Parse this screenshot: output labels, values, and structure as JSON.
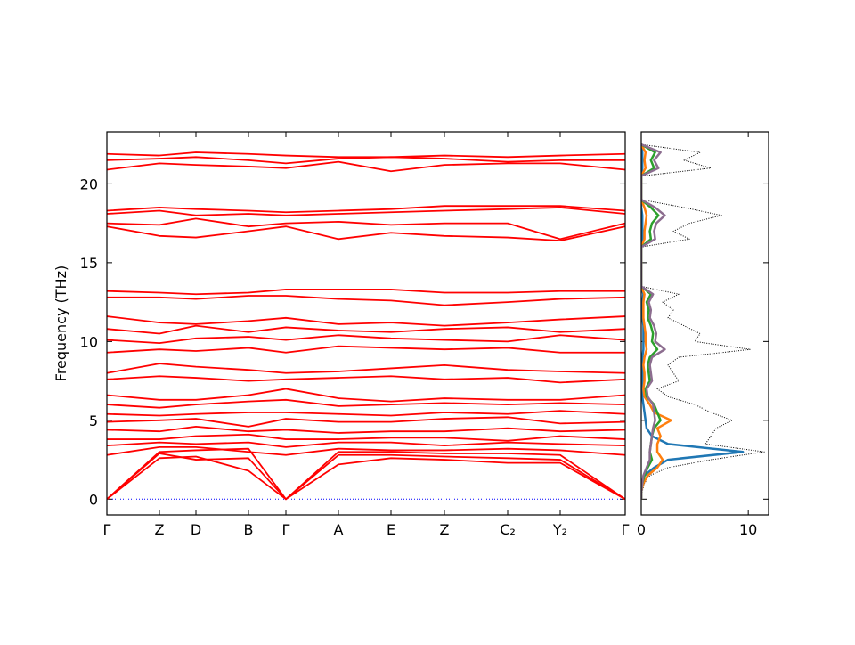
{
  "chart_data": [
    {
      "type": "line",
      "color": "#ff0000",
      "ylabel": "Frequency (THz)",
      "x": [
        0,
        0.59,
        1.0,
        1.59,
        2.01,
        2.6,
        3.19,
        3.79,
        4.5,
        5.09,
        5.82
      ],
      "xlim": [
        0,
        5.82
      ],
      "xticks": [
        {
          "value": 0,
          "label": "Γ"
        },
        {
          "value": 0.59,
          "label": "Z"
        },
        {
          "value": 1.0,
          "label": "D"
        },
        {
          "value": 1.59,
          "label": "B"
        },
        {
          "value": 2.01,
          "label": "Γ"
        },
        {
          "value": 2.6,
          "label": "A"
        },
        {
          "value": 3.19,
          "label": "E"
        },
        {
          "value": 3.79,
          "label": "Z"
        },
        {
          "value": 4.5,
          "label": "C₂"
        },
        {
          "value": 5.09,
          "label": "Y₂"
        },
        {
          "value": 5.82,
          "label": "Γ"
        }
      ],
      "ylim": [
        -1.0,
        23.3
      ],
      "yticks": [
        0,
        5,
        10,
        15,
        20
      ],
      "hline": {
        "value": 0,
        "color": "#0000ff"
      },
      "series": [
        {
          "values": [
            0,
            2.6,
            2.7,
            1.8,
            0,
            2.2,
            2.6,
            2.5,
            2.3,
            2.3,
            0
          ]
        },
        {
          "values": [
            0,
            2.9,
            2.5,
            2.6,
            0,
            2.8,
            2.8,
            2.7,
            2.6,
            2.5,
            0
          ]
        },
        {
          "values": [
            0,
            3.0,
            3.1,
            3.2,
            0,
            3.0,
            3.0,
            2.9,
            2.9,
            2.8,
            0
          ]
        },
        {
          "values": [
            2.8,
            3.3,
            3.3,
            3.0,
            2.8,
            3.2,
            3.1,
            3.1,
            3.2,
            3.1,
            2.8
          ]
        },
        {
          "values": [
            3.4,
            3.6,
            3.5,
            3.6,
            3.3,
            3.6,
            3.6,
            3.4,
            3.6,
            3.5,
            3.4
          ]
        },
        {
          "values": [
            3.8,
            3.8,
            4.0,
            4.1,
            3.8,
            3.8,
            3.9,
            3.9,
            3.7,
            4.0,
            3.8
          ]
        },
        {
          "values": [
            4.4,
            4.3,
            4.6,
            4.3,
            4.4,
            4.2,
            4.3,
            4.3,
            4.5,
            4.3,
            4.4
          ]
        },
        {
          "values": [
            4.9,
            5.0,
            5.1,
            4.6,
            5.1,
            4.9,
            4.9,
            5.1,
            5.2,
            4.8,
            4.9
          ]
        },
        {
          "values": [
            5.4,
            5.3,
            5.4,
            5.5,
            5.5,
            5.4,
            5.3,
            5.5,
            5.4,
            5.6,
            5.4
          ]
        },
        {
          "values": [
            6.0,
            5.8,
            6.0,
            6.2,
            6.3,
            5.9,
            6.0,
            6.1,
            6.0,
            6.1,
            6.0
          ]
        },
        {
          "values": [
            6.6,
            6.3,
            6.3,
            6.6,
            7.0,
            6.4,
            6.2,
            6.4,
            6.3,
            6.3,
            6.6
          ]
        },
        {
          "values": [
            7.6,
            7.8,
            7.7,
            7.5,
            7.6,
            7.7,
            7.8,
            7.6,
            7.7,
            7.4,
            7.6
          ]
        },
        {
          "values": [
            8.0,
            8.6,
            8.4,
            8.2,
            8.0,
            8.1,
            8.3,
            8.5,
            8.2,
            8.1,
            8.0
          ]
        },
        {
          "values": [
            9.3,
            9.5,
            9.4,
            9.6,
            9.3,
            9.7,
            9.6,
            9.5,
            9.6,
            9.3,
            9.3
          ]
        },
        {
          "values": [
            10.1,
            9.9,
            10.2,
            10.3,
            10.1,
            10.4,
            10.2,
            10.1,
            10.0,
            10.4,
            10.1
          ]
        },
        {
          "values": [
            10.8,
            10.5,
            11.0,
            10.6,
            10.9,
            10.7,
            10.6,
            10.8,
            10.9,
            10.6,
            10.8
          ]
        },
        {
          "values": [
            11.6,
            11.2,
            11.1,
            11.3,
            11.5,
            11.1,
            11.2,
            11.0,
            11.2,
            11.4,
            11.6
          ]
        },
        {
          "values": [
            12.8,
            12.8,
            12.7,
            12.9,
            12.9,
            12.7,
            12.6,
            12.3,
            12.5,
            12.7,
            12.8
          ]
        },
        {
          "values": [
            13.2,
            13.1,
            13.0,
            13.1,
            13.3,
            13.3,
            13.3,
            13.1,
            13.1,
            13.2,
            13.2
          ]
        },
        {
          "values": [
            17.3,
            16.7,
            16.6,
            17.0,
            17.3,
            16.5,
            16.9,
            16.7,
            16.6,
            16.4,
            17.3
          ]
        },
        {
          "values": [
            17.5,
            17.4,
            17.8,
            17.3,
            17.5,
            17.6,
            17.4,
            17.5,
            17.5,
            16.5,
            17.5
          ]
        },
        {
          "values": [
            18.1,
            18.3,
            18.0,
            18.1,
            18.0,
            18.1,
            18.2,
            18.3,
            18.4,
            18.5,
            18.1
          ]
        },
        {
          "values": [
            18.3,
            18.5,
            18.4,
            18.3,
            18.2,
            18.3,
            18.4,
            18.6,
            18.6,
            18.6,
            18.3
          ]
        },
        {
          "values": [
            20.9,
            21.3,
            21.2,
            21.1,
            21.0,
            21.4,
            20.8,
            21.2,
            21.3,
            21.3,
            20.9
          ]
        },
        {
          "values": [
            21.5,
            21.6,
            21.7,
            21.5,
            21.3,
            21.6,
            21.7,
            21.6,
            21.4,
            21.5,
            21.5
          ]
        },
        {
          "values": [
            21.9,
            21.8,
            22.0,
            21.9,
            21.8,
            21.7,
            21.7,
            21.8,
            21.7,
            21.8,
            21.9
          ]
        }
      ]
    },
    {
      "type": "line",
      "orientation": "horizontal",
      "y": [
        0,
        0.5,
        1,
        1.5,
        2,
        2.5,
        3,
        3.5,
        4,
        4.5,
        5,
        5.5,
        6,
        6.5,
        7,
        7.5,
        8,
        8.5,
        9,
        9.5,
        10,
        10.5,
        11,
        11.5,
        12,
        12.5,
        13,
        13.5,
        14,
        14.5,
        15,
        15.5,
        16,
        16.5,
        17,
        17.5,
        18,
        18.5,
        19,
        19.5,
        20,
        20.5,
        21,
        21.5,
        22,
        22.5
      ],
      "ylim": [
        -1.0,
        23.3
      ],
      "yticks": [
        0,
        5,
        10,
        15,
        20
      ],
      "xlim": [
        0,
        11.9
      ],
      "xticks": [
        0,
        10
      ],
      "series": [
        {
          "color": "#000000",
          "dotted": true,
          "values": [
            0,
            0.1,
            0.3,
            0.8,
            2.5,
            6.5,
            11.5,
            6,
            6.5,
            7,
            8.5,
            6.5,
            5,
            2.5,
            1.5,
            3.5,
            3,
            2.5,
            3.5,
            10.2,
            5,
            5.5,
            4,
            2.5,
            3,
            2,
            3.5,
            0,
            0,
            0,
            0,
            0,
            0,
            4.5,
            3,
            4.5,
            7.5,
            4,
            0,
            0,
            0,
            0,
            6.5,
            4,
            5.5,
            0
          ]
        },
        {
          "color": "#1f77b4",
          "values": [
            0,
            0,
            0.1,
            0.3,
            1.2,
            2.5,
            9.5,
            2.5,
            1,
            0.5,
            0.4,
            0.3,
            0.2,
            0.1,
            0.1,
            0.1,
            0.1,
            0.1,
            0.1,
            0.2,
            0.2,
            0.2,
            0.2,
            0.1,
            0.1,
            0.1,
            0.2,
            0,
            0,
            0,
            0,
            0,
            0,
            0.1,
            0.1,
            0.1,
            0.1,
            0,
            0,
            0,
            0,
            0,
            0.1,
            0.1,
            0.1,
            0
          ]
        },
        {
          "color": "#ff7f0e",
          "values": [
            0,
            0,
            0.2,
            0.6,
            1.5,
            2,
            1.5,
            1.5,
            1.8,
            1.5,
            2.8,
            1.2,
            0.8,
            0.3,
            0.2,
            0.3,
            0.3,
            0.2,
            0.3,
            0.5,
            0.4,
            0.4,
            0.3,
            0.2,
            0.2,
            0.2,
            0.3,
            0,
            0,
            0,
            0,
            0,
            0,
            0.3,
            0.3,
            0.4,
            0.5,
            0.3,
            0,
            0,
            0,
            0,
            0.4,
            0.3,
            0.4,
            0
          ]
        },
        {
          "color": "#2ca02c",
          "values": [
            0,
            0,
            0.1,
            0.3,
            0.6,
            1,
            0.8,
            0.9,
            1,
            1.2,
            1.8,
            1.5,
            1.2,
            0.5,
            0.4,
            0.8,
            0.7,
            0.6,
            0.8,
            1.5,
            1,
            1.1,
            0.9,
            0.6,
            0.7,
            0.5,
            0.9,
            0,
            0,
            0,
            0,
            0,
            0,
            0.9,
            0.8,
            1,
            1.6,
            0.9,
            0,
            0,
            0,
            0,
            1.2,
            0.9,
            1.3,
            0
          ]
        },
        {
          "color": "#8c6d8f",
          "values": [
            0,
            0,
            0.1,
            0.2,
            0.5,
            0.8,
            0.8,
            0.9,
            1,
            1.1,
            1.3,
            1.2,
            1.1,
            0.6,
            0.5,
            1,
            0.9,
            0.8,
            1,
            2.2,
            1.3,
            1.4,
            1.2,
            0.8,
            0.9,
            0.7,
            1.1,
            0,
            0,
            0,
            0,
            0,
            0,
            1.3,
            1.2,
            1.4,
            2.2,
            1.3,
            0,
            0,
            0,
            0,
            1.6,
            1.2,
            1.8,
            0
          ]
        }
      ]
    }
  ]
}
